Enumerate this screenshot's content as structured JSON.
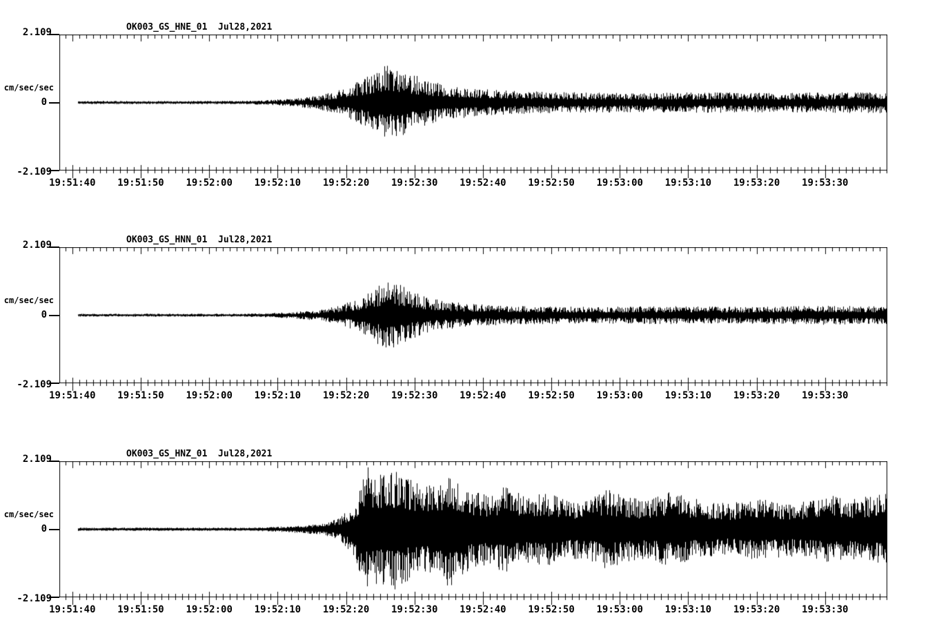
{
  "figure": {
    "background": "#ffffff",
    "trace_color": "#000000",
    "kind": "strong-motion seismogram, 3 components"
  },
  "chart_data": [
    {
      "type": "line",
      "kind": "seismogram",
      "title": "OK003_GS_HNE_01  Jul28,2021",
      "station": "OK003",
      "network": "GS",
      "channel": "HNE",
      "location": "01",
      "date": "Jul28,2021",
      "ylabel": "cm/sec/sec",
      "ylim": [
        -2.109,
        2.109
      ],
      "ytick_labels": [
        "2.109",
        "0",
        "-2.109"
      ],
      "xtick_labels": [
        "19:51:40",
        "19:51:50",
        "19:52:00",
        "19:52:10",
        "19:52:20",
        "19:52:30",
        "19:52:40",
        "19:52:50",
        "19:53:00",
        "19:53:10",
        "19:53:20",
        "19:53:30"
      ],
      "x_span_seconds": 121,
      "x_first_tick_offset_seconds": 1.9,
      "x_major_interval_seconds": 10,
      "x_minor_interval_seconds": 1,
      "trace_start_offset_seconds": 2.7,
      "grid": false,
      "legend": null,
      "envelope_points": [
        [
          0,
          0.05
        ],
        [
          26,
          0.05
        ],
        [
          30,
          0.07
        ],
        [
          34,
          0.12
        ],
        [
          38,
          0.22
        ],
        [
          42,
          0.45
        ],
        [
          44,
          0.7
        ],
        [
          46,
          0.95
        ],
        [
          48,
          1.2
        ],
        [
          50,
          1.05
        ],
        [
          52,
          0.85
        ],
        [
          55,
          0.62
        ],
        [
          58,
          0.5
        ],
        [
          62,
          0.42
        ],
        [
          68,
          0.35
        ],
        [
          75,
          0.32
        ],
        [
          85,
          0.3
        ],
        [
          95,
          0.32
        ],
        [
          105,
          0.3
        ],
        [
          113,
          0.32
        ],
        [
          121,
          0.34
        ]
      ],
      "texture": {
        "floor": 0.3,
        "pow": 2.5
      },
      "seed": 11
    },
    {
      "type": "line",
      "kind": "seismogram",
      "title": "OK003_GS_HNN_01  Jul28,2021",
      "station": "OK003",
      "network": "GS",
      "channel": "HNN",
      "location": "01",
      "date": "Jul28,2021",
      "ylabel": "cm/sec/sec",
      "ylim": [
        -2.109,
        2.109
      ],
      "ytick_labels": [
        "2.109",
        "0",
        "-2.109"
      ],
      "xtick_labels": [
        "19:51:40",
        "19:51:50",
        "19:52:00",
        "19:52:10",
        "19:52:20",
        "19:52:30",
        "19:52:40",
        "19:52:50",
        "19:53:00",
        "19:53:10",
        "19:53:20",
        "19:53:30"
      ],
      "x_span_seconds": 121,
      "x_first_tick_offset_seconds": 1.9,
      "x_major_interval_seconds": 10,
      "x_minor_interval_seconds": 1,
      "trace_start_offset_seconds": 2.7,
      "grid": false,
      "legend": null,
      "envelope_points": [
        [
          0,
          0.045
        ],
        [
          26,
          0.045
        ],
        [
          30,
          0.06
        ],
        [
          34,
          0.1
        ],
        [
          38,
          0.18
        ],
        [
          41,
          0.3
        ],
        [
          44,
          0.55
        ],
        [
          46,
          0.85
        ],
        [
          48,
          1.05
        ],
        [
          50,
          0.95
        ],
        [
          52,
          0.7
        ],
        [
          55,
          0.5
        ],
        [
          58,
          0.4
        ],
        [
          62,
          0.33
        ],
        [
          68,
          0.28
        ],
        [
          78,
          0.26
        ],
        [
          90,
          0.28
        ],
        [
          100,
          0.26
        ],
        [
          110,
          0.3
        ],
        [
          121,
          0.28
        ]
      ],
      "texture": {
        "floor": 0.3,
        "pow": 2.5
      },
      "seed": 23
    },
    {
      "type": "line",
      "kind": "seismogram",
      "title": "OK003_GS_HNZ_01  Jul28,2021",
      "station": "OK003",
      "network": "GS",
      "channel": "HNZ",
      "location": "01",
      "date": "Jul28,2021",
      "ylabel": "cm/sec/sec",
      "ylim": [
        -2.109,
        2.109
      ],
      "ytick_labels": [
        "2.109",
        "0",
        "-2.109"
      ],
      "xtick_labels": [
        "19:51:40",
        "19:51:50",
        "19:52:00",
        "19:52:10",
        "19:52:20",
        "19:52:30",
        "19:52:40",
        "19:52:50",
        "19:53:00",
        "19:53:10",
        "19:53:20",
        "19:53:30"
      ],
      "x_span_seconds": 121,
      "x_first_tick_offset_seconds": 1.9,
      "x_major_interval_seconds": 10,
      "x_minor_interval_seconds": 1,
      "trace_start_offset_seconds": 2.7,
      "grid": false,
      "legend": null,
      "envelope_points": [
        [
          0,
          0.05
        ],
        [
          28,
          0.05
        ],
        [
          32,
          0.08
        ],
        [
          36,
          0.13
        ],
        [
          39,
          0.2
        ],
        [
          41,
          0.35
        ],
        [
          43,
          0.8
        ],
        [
          45,
          1.95
        ],
        [
          47,
          1.7
        ],
        [
          49,
          1.9
        ],
        [
          51,
          1.6
        ],
        [
          53,
          1.4
        ],
        [
          55,
          1.35
        ],
        [
          57,
          1.85
        ],
        [
          59,
          1.45
        ],
        [
          61,
          1.15
        ],
        [
          63,
          1.1
        ],
        [
          65,
          1.35
        ],
        [
          68,
          1.05
        ],
        [
          71,
          1.15
        ],
        [
          74,
          0.95
        ],
        [
          77,
          0.9
        ],
        [
          80,
          1.25
        ],
        [
          83,
          1.0
        ],
        [
          86,
          0.9
        ],
        [
          89,
          1.2
        ],
        [
          92,
          1.0
        ],
        [
          95,
          0.85
        ],
        [
          98,
          0.8
        ],
        [
          101,
          0.95
        ],
        [
          104,
          0.9
        ],
        [
          107,
          0.85
        ],
        [
          110,
          0.9
        ],
        [
          113,
          1.1
        ],
        [
          116,
          0.95
        ],
        [
          119,
          1.05
        ],
        [
          121,
          1.1
        ]
      ],
      "texture": {
        "floor": 0.35,
        "pow": 2.2
      },
      "seed": 37
    }
  ],
  "layout_tops": [
    0,
    308,
    618
  ]
}
